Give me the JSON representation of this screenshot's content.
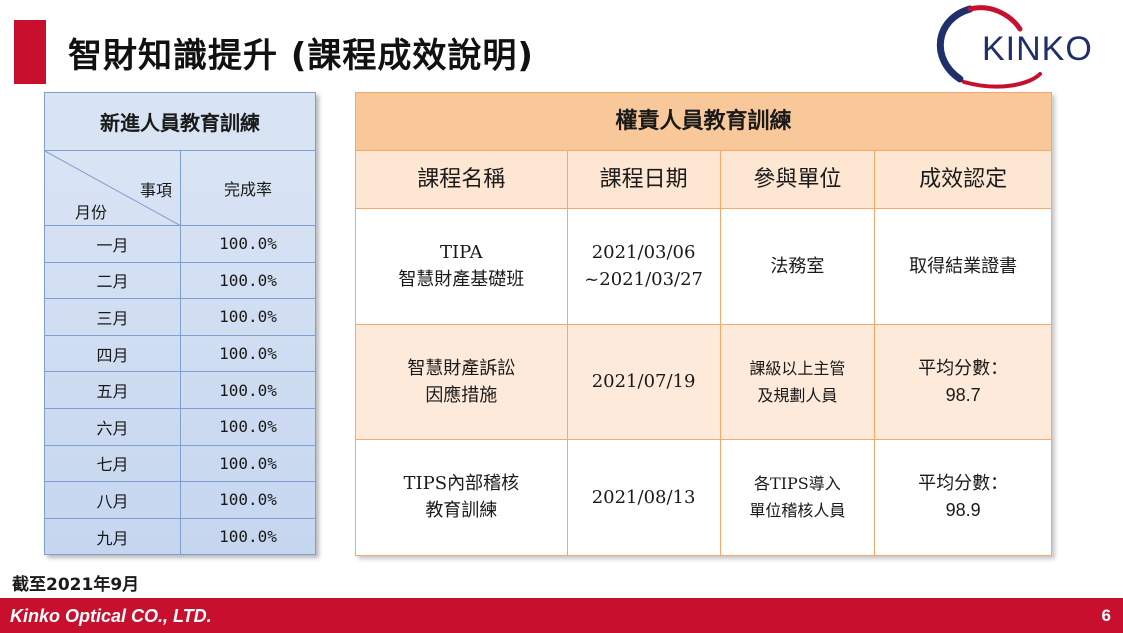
{
  "title": "智財知識提升 (課程成效說明)",
  "logo": {
    "text": "KINKO"
  },
  "left_table": {
    "title": "新進人員教育訓練",
    "diag_top": "事項",
    "diag_bottom": "月份",
    "col_header": "完成率",
    "rows": [
      {
        "month": "一月",
        "rate": "100.0%"
      },
      {
        "month": "二月",
        "rate": "100.0%"
      },
      {
        "month": "三月",
        "rate": "100.0%"
      },
      {
        "month": "四月",
        "rate": "100.0%"
      },
      {
        "month": "五月",
        "rate": "100.0%"
      },
      {
        "month": "六月",
        "rate": "100.0%"
      },
      {
        "month": "七月",
        "rate": "100.0%"
      },
      {
        "month": "八月",
        "rate": "100.0%"
      },
      {
        "month": "九月",
        "rate": "100.0%"
      }
    ]
  },
  "right_table": {
    "title": "權責人員教育訓練",
    "headers": [
      "課程名稱",
      "課程日期",
      "參與單位",
      "成效認定"
    ],
    "rows": [
      {
        "name_l1": "TIPA",
        "name_l2": "智慧財產基礎班",
        "date_l1": "2021/03/06",
        "date_l2": "~2021/03/27",
        "unit_l1": "法務室",
        "unit_l2": "",
        "result_l1": "取得結業證書",
        "result_l2": ""
      },
      {
        "name_l1": "智慧財產訴訟",
        "name_l2": "因應措施",
        "date_l1": "2021/07/19",
        "date_l2": "",
        "unit_l1": "課級以上主管",
        "unit_l2": "及規劃人員",
        "result_l1": "平均分數：",
        "result_l2": "98.7"
      },
      {
        "name_l1": "TIPS內部稽核",
        "name_l2": "教育訓練",
        "date_l1": "2021/08/13",
        "date_l2": "",
        "unit_l1": "各TIPS導入",
        "unit_l2": "單位稽核人員",
        "result_l1": "平均分數：",
        "result_l2": "98.9"
      }
    ]
  },
  "note": "截至2021年9月",
  "footer": {
    "company": "Kinko Optical CO., LTD.",
    "page": "6"
  },
  "colors": {
    "brand_red": "#c8102e",
    "left_table_blue": "#c5d6ef",
    "right_table_orange": "#f9c89a"
  }
}
